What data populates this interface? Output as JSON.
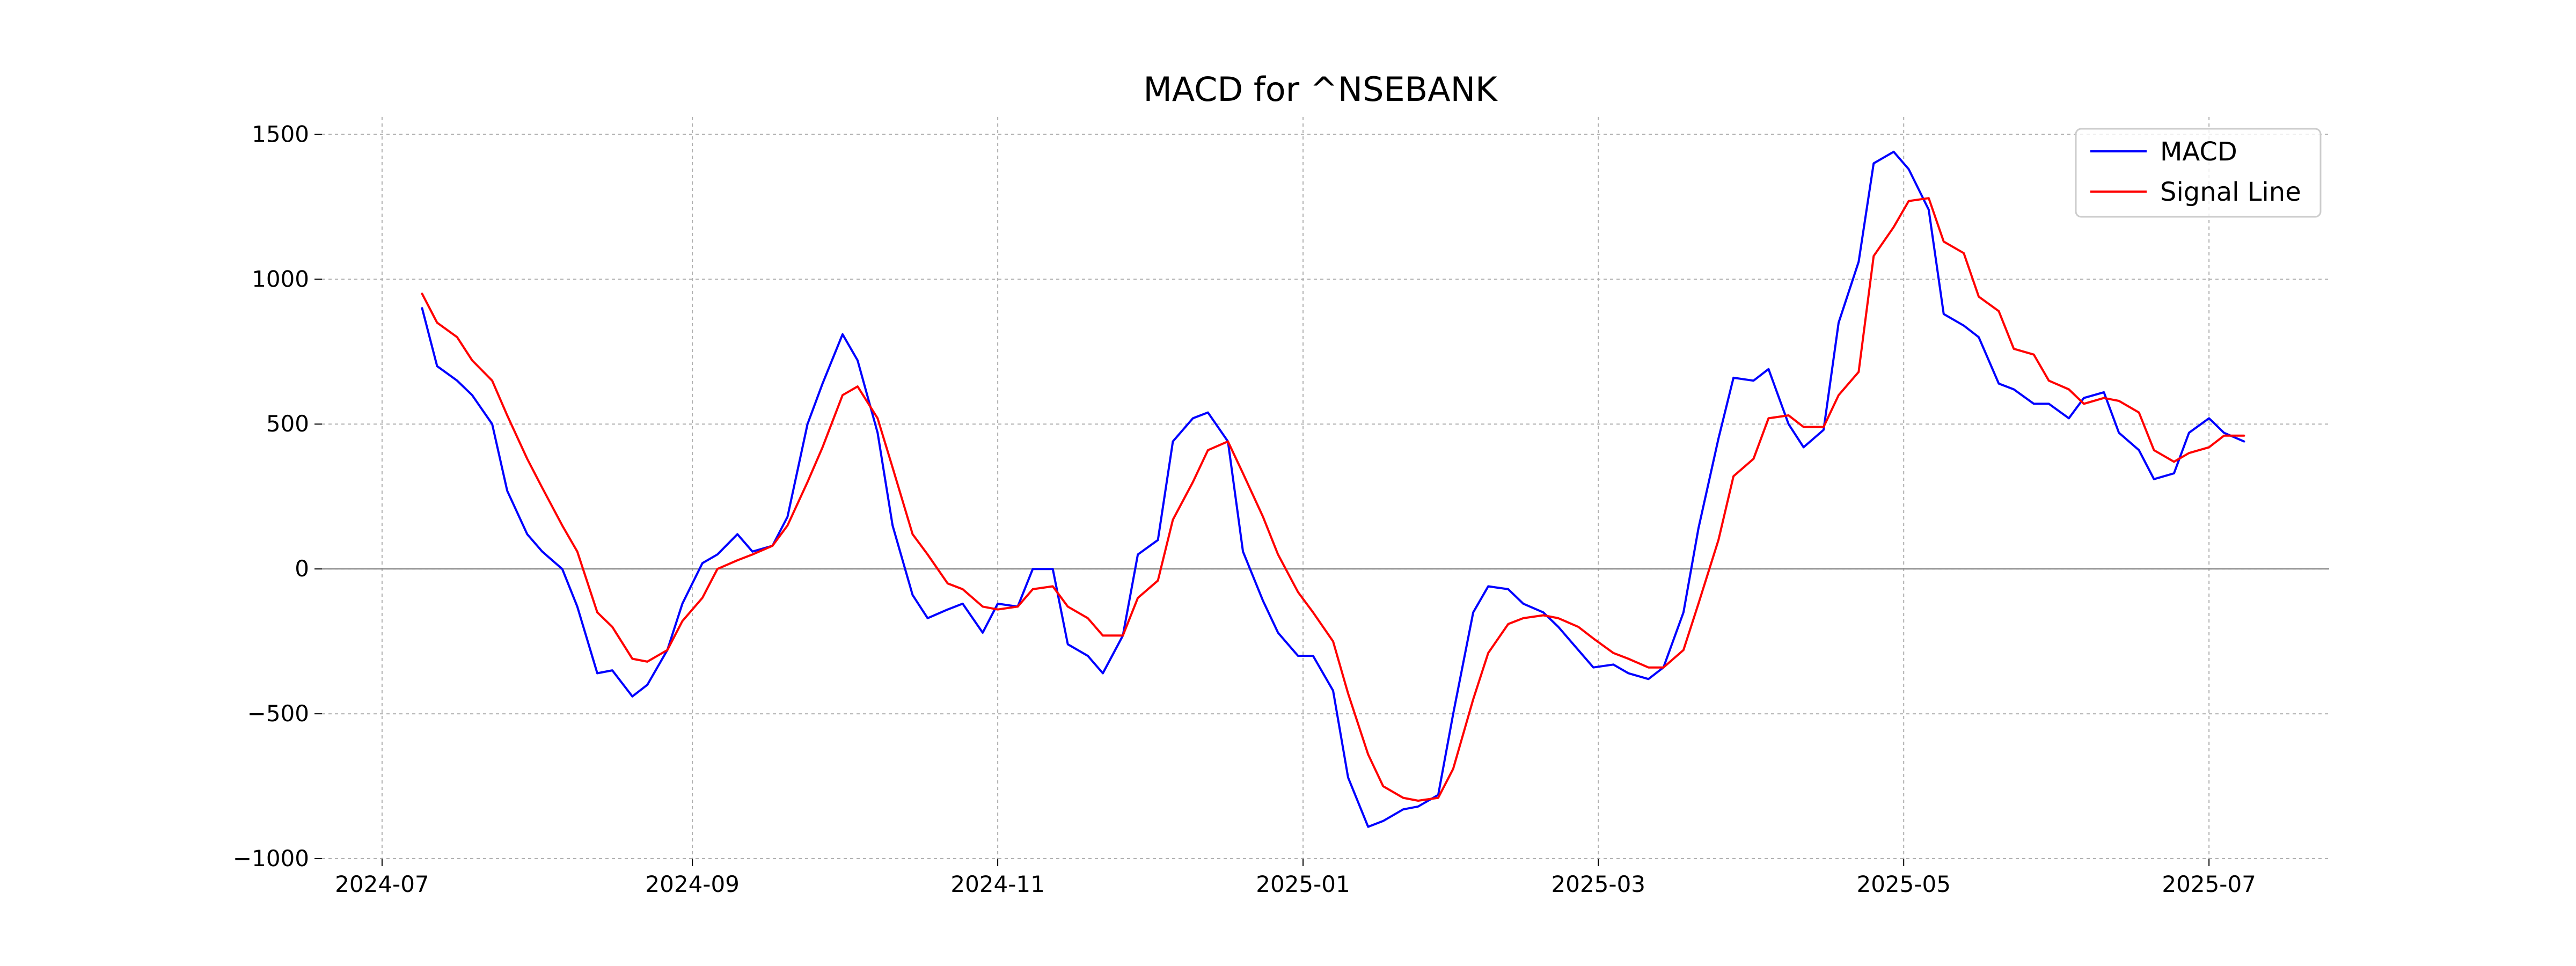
{
  "chart_data": {
    "type": "line",
    "title": "MACD for ^NSEBANK",
    "xlabel": "",
    "ylabel": "",
    "x_axis_type": "date",
    "xlim": [
      "2024-06-19",
      "2025-07-25"
    ],
    "ylim": [
      -1000,
      1560
    ],
    "x_ticks": [
      "2024-07-01",
      "2024-09-01",
      "2024-11-01",
      "2025-01-01",
      "2025-03-01",
      "2025-05-01",
      "2025-07-01"
    ],
    "x_tick_labels": [
      "2024-07",
      "2024-09",
      "2024-11",
      "2025-01",
      "2025-03",
      "2025-05",
      "2025-07"
    ],
    "y_ticks": [
      -1000,
      -500,
      0,
      500,
      1000,
      1500
    ],
    "y_tick_labels": [
      "−1000",
      "−500",
      "0",
      "500",
      "1000",
      "1500"
    ],
    "grid": true,
    "zero_line": true,
    "legend_position": "top-right",
    "series": [
      {
        "name": "MACD",
        "color": "#0000ff",
        "points": [
          [
            "2024-07-09",
            900
          ],
          [
            "2024-07-12",
            700
          ],
          [
            "2024-07-16",
            650
          ],
          [
            "2024-07-19",
            600
          ],
          [
            "2024-07-23",
            500
          ],
          [
            "2024-07-26",
            270
          ],
          [
            "2024-07-30",
            120
          ],
          [
            "2024-08-02",
            60
          ],
          [
            "2024-08-06",
            0
          ],
          [
            "2024-08-09",
            -130
          ],
          [
            "2024-08-13",
            -360
          ],
          [
            "2024-08-16",
            -350
          ],
          [
            "2024-08-20",
            -440
          ],
          [
            "2024-08-23",
            -400
          ],
          [
            "2024-08-27",
            -280
          ],
          [
            "2024-08-30",
            -120
          ],
          [
            "2024-09-03",
            20
          ],
          [
            "2024-09-06",
            50
          ],
          [
            "2024-09-10",
            120
          ],
          [
            "2024-09-13",
            60
          ],
          [
            "2024-09-17",
            80
          ],
          [
            "2024-09-20",
            180
          ],
          [
            "2024-09-24",
            500
          ],
          [
            "2024-09-27",
            640
          ],
          [
            "2024-10-01",
            810
          ],
          [
            "2024-10-04",
            720
          ],
          [
            "2024-10-08",
            470
          ],
          [
            "2024-10-11",
            150
          ],
          [
            "2024-10-15",
            -90
          ],
          [
            "2024-10-18",
            -170
          ],
          [
            "2024-10-22",
            -140
          ],
          [
            "2024-10-25",
            -120
          ],
          [
            "2024-10-29",
            -220
          ],
          [
            "2024-11-01",
            -120
          ],
          [
            "2024-11-05",
            -130
          ],
          [
            "2024-11-08",
            0
          ],
          [
            "2024-11-12",
            0
          ],
          [
            "2024-11-15",
            -260
          ],
          [
            "2024-11-19",
            -300
          ],
          [
            "2024-11-22",
            -360
          ],
          [
            "2024-11-26",
            -230
          ],
          [
            "2024-11-29",
            50
          ],
          [
            "2024-12-03",
            100
          ],
          [
            "2024-12-06",
            440
          ],
          [
            "2024-12-10",
            520
          ],
          [
            "2024-12-13",
            540
          ],
          [
            "2024-12-17",
            440
          ],
          [
            "2024-12-20",
            60
          ],
          [
            "2024-12-24",
            -110
          ],
          [
            "2024-12-27",
            -220
          ],
          [
            "2024-12-31",
            -300
          ],
          [
            "2025-01-03",
            -300
          ],
          [
            "2025-01-07",
            -420
          ],
          [
            "2025-01-10",
            -720
          ],
          [
            "2025-01-14",
            -890
          ],
          [
            "2025-01-17",
            -870
          ],
          [
            "2025-01-21",
            -830
          ],
          [
            "2025-01-24",
            -820
          ],
          [
            "2025-01-28",
            -780
          ],
          [
            "2025-01-31",
            -500
          ],
          [
            "2025-02-04",
            -150
          ],
          [
            "2025-02-07",
            -60
          ],
          [
            "2025-02-11",
            -70
          ],
          [
            "2025-02-14",
            -120
          ],
          [
            "2025-02-18",
            -150
          ],
          [
            "2025-02-21",
            -200
          ],
          [
            "2025-02-25",
            -280
          ],
          [
            "2025-02-28",
            -340
          ],
          [
            "2025-03-04",
            -330
          ],
          [
            "2025-03-07",
            -360
          ],
          [
            "2025-03-11",
            -380
          ],
          [
            "2025-03-14",
            -340
          ],
          [
            "2025-03-18",
            -150
          ],
          [
            "2025-03-21",
            140
          ],
          [
            "2025-03-25",
            450
          ],
          [
            "2025-03-28",
            660
          ],
          [
            "2025-04-01",
            650
          ],
          [
            "2025-04-04",
            690
          ],
          [
            "2025-04-08",
            500
          ],
          [
            "2025-04-11",
            420
          ],
          [
            "2025-04-15",
            480
          ],
          [
            "2025-04-18",
            850
          ],
          [
            "2025-04-22",
            1060
          ],
          [
            "2025-04-25",
            1400
          ],
          [
            "2025-04-29",
            1440
          ],
          [
            "2025-05-02",
            1380
          ],
          [
            "2025-05-06",
            1240
          ],
          [
            "2025-05-09",
            880
          ],
          [
            "2025-05-13",
            840
          ],
          [
            "2025-05-16",
            800
          ],
          [
            "2025-05-20",
            640
          ],
          [
            "2025-05-23",
            620
          ],
          [
            "2025-05-27",
            570
          ],
          [
            "2025-05-30",
            570
          ],
          [
            "2025-06-03",
            520
          ],
          [
            "2025-06-06",
            590
          ],
          [
            "2025-06-10",
            610
          ],
          [
            "2025-06-13",
            470
          ],
          [
            "2025-06-17",
            410
          ],
          [
            "2025-06-20",
            310
          ],
          [
            "2025-06-24",
            330
          ],
          [
            "2025-06-27",
            470
          ],
          [
            "2025-07-01",
            520
          ],
          [
            "2025-07-04",
            470
          ],
          [
            "2025-07-08",
            440
          ]
        ]
      },
      {
        "name": "Signal Line",
        "color": "#ff0000",
        "points": [
          [
            "2024-07-09",
            950
          ],
          [
            "2024-07-12",
            850
          ],
          [
            "2024-07-16",
            800
          ],
          [
            "2024-07-19",
            720
          ],
          [
            "2024-07-23",
            650
          ],
          [
            "2024-07-26",
            530
          ],
          [
            "2024-07-30",
            380
          ],
          [
            "2024-08-02",
            280
          ],
          [
            "2024-08-06",
            150
          ],
          [
            "2024-08-09",
            60
          ],
          [
            "2024-08-13",
            -150
          ],
          [
            "2024-08-16",
            -200
          ],
          [
            "2024-08-20",
            -310
          ],
          [
            "2024-08-23",
            -320
          ],
          [
            "2024-08-27",
            -280
          ],
          [
            "2024-08-30",
            -180
          ],
          [
            "2024-09-03",
            -100
          ],
          [
            "2024-09-06",
            0
          ],
          [
            "2024-09-10",
            30
          ],
          [
            "2024-09-13",
            50
          ],
          [
            "2024-09-17",
            80
          ],
          [
            "2024-09-20",
            150
          ],
          [
            "2024-09-24",
            300
          ],
          [
            "2024-09-27",
            420
          ],
          [
            "2024-10-01",
            600
          ],
          [
            "2024-10-04",
            630
          ],
          [
            "2024-10-08",
            520
          ],
          [
            "2024-10-11",
            350
          ],
          [
            "2024-10-15",
            120
          ],
          [
            "2024-10-18",
            50
          ],
          [
            "2024-10-22",
            -50
          ],
          [
            "2024-10-25",
            -70
          ],
          [
            "2024-10-29",
            -130
          ],
          [
            "2024-11-01",
            -140
          ],
          [
            "2024-11-05",
            -130
          ],
          [
            "2024-11-08",
            -70
          ],
          [
            "2024-11-12",
            -60
          ],
          [
            "2024-11-15",
            -130
          ],
          [
            "2024-11-19",
            -170
          ],
          [
            "2024-11-22",
            -230
          ],
          [
            "2024-11-26",
            -230
          ],
          [
            "2024-11-29",
            -100
          ],
          [
            "2024-12-03",
            -40
          ],
          [
            "2024-12-06",
            170
          ],
          [
            "2024-12-10",
            300
          ],
          [
            "2024-12-13",
            410
          ],
          [
            "2024-12-17",
            440
          ],
          [
            "2024-12-20",
            330
          ],
          [
            "2024-12-24",
            180
          ],
          [
            "2024-12-27",
            50
          ],
          [
            "2024-12-31",
            -80
          ],
          [
            "2025-01-03",
            -150
          ],
          [
            "2025-01-07",
            -250
          ],
          [
            "2025-01-10",
            -430
          ],
          [
            "2025-01-14",
            -640
          ],
          [
            "2025-01-17",
            -750
          ],
          [
            "2025-01-21",
            -790
          ],
          [
            "2025-01-24",
            -800
          ],
          [
            "2025-01-28",
            -790
          ],
          [
            "2025-01-31",
            -690
          ],
          [
            "2025-02-04",
            -450
          ],
          [
            "2025-02-07",
            -290
          ],
          [
            "2025-02-11",
            -190
          ],
          [
            "2025-02-14",
            -170
          ],
          [
            "2025-02-18",
            -160
          ],
          [
            "2025-02-21",
            -170
          ],
          [
            "2025-02-25",
            -200
          ],
          [
            "2025-02-28",
            -240
          ],
          [
            "2025-03-04",
            -290
          ],
          [
            "2025-03-07",
            -310
          ],
          [
            "2025-03-11",
            -340
          ],
          [
            "2025-03-14",
            -340
          ],
          [
            "2025-03-18",
            -280
          ],
          [
            "2025-03-21",
            -120
          ],
          [
            "2025-03-25",
            100
          ],
          [
            "2025-03-28",
            320
          ],
          [
            "2025-04-01",
            380
          ],
          [
            "2025-04-04",
            520
          ],
          [
            "2025-04-08",
            530
          ],
          [
            "2025-04-11",
            490
          ],
          [
            "2025-04-15",
            490
          ],
          [
            "2025-04-18",
            600
          ],
          [
            "2025-04-22",
            680
          ],
          [
            "2025-04-25",
            1080
          ],
          [
            "2025-04-29",
            1180
          ],
          [
            "2025-05-02",
            1270
          ],
          [
            "2025-05-06",
            1280
          ],
          [
            "2025-05-09",
            1130
          ],
          [
            "2025-05-13",
            1090
          ],
          [
            "2025-05-16",
            940
          ],
          [
            "2025-05-20",
            890
          ],
          [
            "2025-05-23",
            760
          ],
          [
            "2025-05-27",
            740
          ],
          [
            "2025-05-30",
            650
          ],
          [
            "2025-06-03",
            620
          ],
          [
            "2025-06-06",
            570
          ],
          [
            "2025-06-10",
            590
          ],
          [
            "2025-06-13",
            580
          ],
          [
            "2025-06-17",
            540
          ],
          [
            "2025-06-20",
            410
          ],
          [
            "2025-06-24",
            370
          ],
          [
            "2025-06-27",
            400
          ],
          [
            "2025-07-01",
            420
          ],
          [
            "2025-07-04",
            460
          ],
          [
            "2025-07-08",
            460
          ]
        ]
      }
    ]
  }
}
